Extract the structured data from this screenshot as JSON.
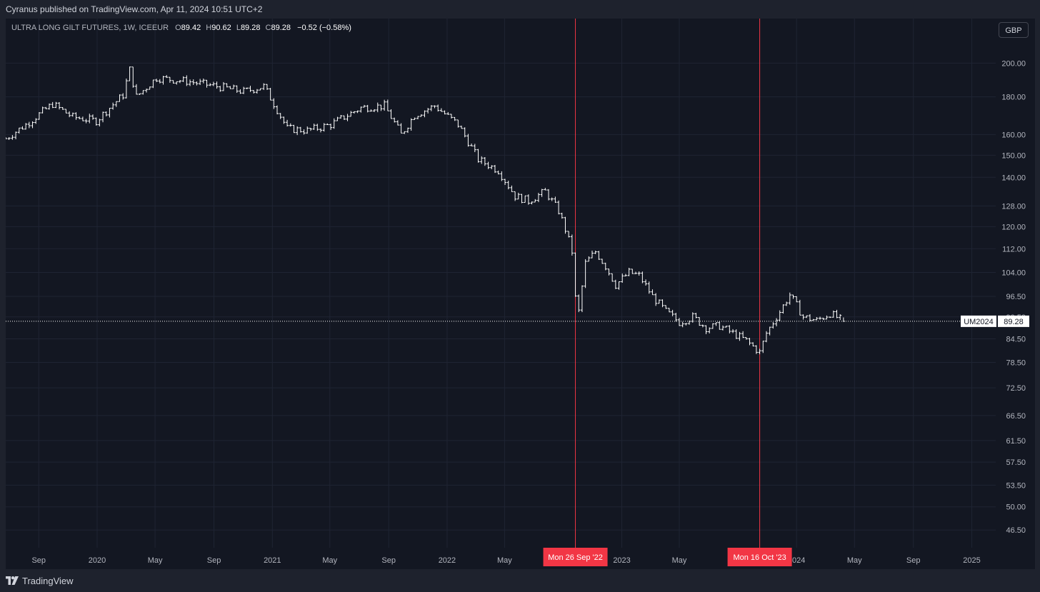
{
  "header": {
    "publisher_line": "Cyranus published on TradingView.com, Apr 11, 2024 10:51 UTC+2"
  },
  "legend": {
    "symbol": "ULTRA LONG GILT FUTURES, 1W, ICEEUR",
    "o_label": "O",
    "o_value": "89.42",
    "h_label": "H",
    "h_value": "90.62",
    "l_label": "L",
    "l_value": "89.28",
    "c_label": "C",
    "c_value": "89.28",
    "change": "−0.52 (−0.58%)"
  },
  "currency_button": "GBP",
  "price_tag": {
    "symbol": "UM2024",
    "value": "89.28"
  },
  "footer": {
    "brand": "TradingView",
    "logo_icon": "tradingview-logo-icon"
  },
  "colors": {
    "background": "#131722",
    "frame": "#1e222d",
    "grid": "#1f2433",
    "bars": "#ffffff",
    "marker": "#f23645"
  },
  "chart_data": {
    "type": "ohlc-bar",
    "title": "ULTRA LONG GILT FUTURES, 1W, ICEEUR",
    "y_scale": "log",
    "ylim": [
      44,
      215
    ],
    "xlim": [
      "2019-06-24",
      "2025-02-20"
    ],
    "grid": true,
    "y_ticks": [
      200.0,
      180.0,
      160.0,
      150.0,
      140.0,
      128.0,
      120.0,
      112.0,
      104.0,
      96.5,
      90.5,
      84.5,
      78.5,
      72.5,
      66.5,
      61.5,
      57.5,
      53.5,
      50.0,
      46.5
    ],
    "y_tick_labels": [
      "200.00",
      "180.00",
      "160.00",
      "150.00",
      "140.00",
      "128.00",
      "120.00",
      "112.00",
      "104.00",
      "96.50",
      "90.50",
      "84.50",
      "78.50",
      "72.50",
      "66.50",
      "61.50",
      "57.50",
      "53.50",
      "50.00",
      "46.50"
    ],
    "x_ticks": [
      {
        "date": "2019-09-01",
        "label": "Sep"
      },
      {
        "date": "2020-01-01",
        "label": "2020"
      },
      {
        "date": "2020-05-01",
        "label": "May"
      },
      {
        "date": "2020-09-01",
        "label": "Sep"
      },
      {
        "date": "2021-01-01",
        "label": "2021"
      },
      {
        "date": "2021-05-01",
        "label": "May"
      },
      {
        "date": "2021-09-01",
        "label": "Sep"
      },
      {
        "date": "2022-01-01",
        "label": "2022"
      },
      {
        "date": "2022-05-01",
        "label": "May"
      },
      {
        "date": "2023-01-01",
        "label": "2023"
      },
      {
        "date": "2023-05-01",
        "label": "May"
      },
      {
        "date": "2024-01-01",
        "label": "2024"
      },
      {
        "date": "2024-05-01",
        "label": "May"
      },
      {
        "date": "2024-09-01",
        "label": "Sep"
      },
      {
        "date": "2025-01-01",
        "label": "2025"
      }
    ],
    "markers": [
      {
        "date": "2022-09-26",
        "label": "Mon 26 Sep '22"
      },
      {
        "date": "2023-10-16",
        "label": "Mon 16 Oct '23"
      }
    ],
    "last_price": 89.28,
    "x": [
      "2019-06-24",
      "2019-08-05",
      "2019-09-30",
      "2019-11-11",
      "2019-12-30",
      "2020-02-24",
      "2020-03-09",
      "2020-03-23",
      "2020-05-04",
      "2020-07-06",
      "2020-09-07",
      "2020-11-02",
      "2020-12-14",
      "2021-02-01",
      "2021-03-15",
      "2021-05-03",
      "2021-07-05",
      "2021-08-23",
      "2021-09-27",
      "2021-10-25",
      "2021-12-06",
      "2022-01-24",
      "2022-03-07",
      "2022-04-18",
      "2022-05-23",
      "2022-06-20",
      "2022-07-25",
      "2022-08-22",
      "2022-09-05",
      "2022-09-19",
      "2022-09-26",
      "2022-10-03",
      "2022-10-17",
      "2022-11-07",
      "2022-11-28",
      "2022-12-19",
      "2023-01-16",
      "2023-02-06",
      "2023-03-06",
      "2023-04-03",
      "2023-05-01",
      "2023-05-29",
      "2023-06-26",
      "2023-07-24",
      "2023-08-21",
      "2023-09-18",
      "2023-10-16",
      "2023-10-30",
      "2023-11-27",
      "2023-12-18",
      "2024-01-15",
      "2024-02-12",
      "2024-03-11",
      "2024-04-08"
    ],
    "series": [
      {
        "values": [
          158,
          165,
          176,
          169,
          167,
          181,
          196,
          180,
          191,
          189,
          186,
          183,
          186,
          163,
          162,
          165,
          174,
          175,
          160,
          170,
          175,
          165,
          148,
          143,
          132,
          130,
          134,
          126,
          119,
          111,
          96,
          92,
          107,
          111,
          106,
          100,
          104,
          103,
          96.5,
          92,
          89,
          90.5,
          87.5,
          88,
          86,
          84,
          81,
          86,
          92,
          97,
          90.5,
          89.5,
          91.5,
          89.28
        ]
      }
    ]
  }
}
